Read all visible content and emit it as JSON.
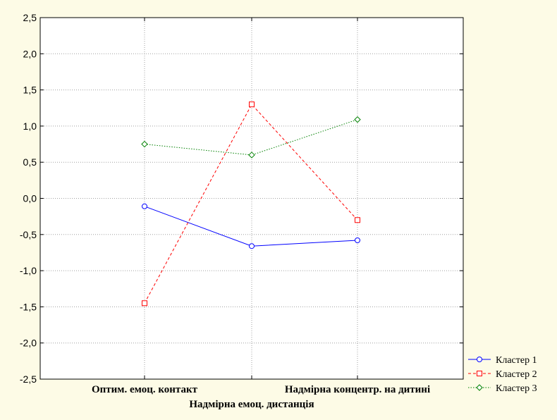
{
  "chart_data": {
    "type": "line",
    "title": "",
    "xlabel": "",
    "ylabel": "",
    "categories": [
      "Оптим. емоц. контакт",
      "Надмірна емоц. дистанція",
      "Надмірна концентр. на дитині"
    ],
    "ylim": [
      -2.5,
      2.5
    ],
    "yticks": [
      "2,5",
      "2,0",
      "1,5",
      "1,0",
      "0,5",
      "0,0",
      "-0,5",
      "-1,0",
      "-1,5",
      "-2,0",
      "-2,5"
    ],
    "ytick_values": [
      2.5,
      2.0,
      1.5,
      1.0,
      0.5,
      0.0,
      -0.5,
      -1.0,
      -1.5,
      -2.0,
      -2.5
    ],
    "grid": true,
    "legend_position": "bottom-right",
    "series": [
      {
        "name": "Кластер 1",
        "values": [
          -0.11,
          -0.66,
          -0.58
        ],
        "color": "#0000ff",
        "dash": "solid",
        "marker": "circle"
      },
      {
        "name": "Кластер 2",
        "values": [
          -1.45,
          1.3,
          -0.3
        ],
        "color": "#ff0000",
        "dash": "dashed",
        "marker": "square"
      },
      {
        "name": "Кластер 3",
        "values": [
          0.75,
          0.6,
          1.09
        ],
        "color": "#008000",
        "dash": "dotted",
        "marker": "diamond"
      }
    ]
  }
}
